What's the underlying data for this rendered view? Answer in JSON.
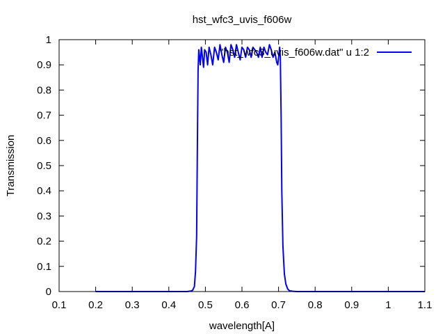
{
  "chart_data": {
    "type": "line",
    "title": "hst_wfc3_uvis_f606w",
    "xlabel": "wavelength[A]",
    "ylabel": "Transmission",
    "xlim": [
      0.1,
      1.1
    ],
    "ylim": [
      0,
      1
    ],
    "grid": false,
    "legend_position": "top-right",
    "x_ticks": [
      "0.1",
      "0.2",
      "0.3",
      "0.4",
      "0.5",
      "0.6",
      "0.7",
      "0.8",
      "0.9",
      "1",
      "1.1"
    ],
    "y_ticks": [
      "0",
      "0.1",
      "0.2",
      "0.3",
      "0.4",
      "0.5",
      "0.6",
      "0.7",
      "0.8",
      "0.9",
      "1"
    ],
    "series": [
      {
        "name": "\"hst_wfc3_uvis_f606w.dat\" u 1:2",
        "color": "#0000ff",
        "x": [
          0.2,
          0.45,
          0.46,
          0.465,
          0.47,
          0.473,
          0.476,
          0.478,
          0.48,
          0.482,
          0.484,
          0.486,
          0.489,
          0.492,
          0.495,
          0.498,
          0.502,
          0.506,
          0.51,
          0.515,
          0.52,
          0.525,
          0.53,
          0.535,
          0.54,
          0.545,
          0.55,
          0.555,
          0.56,
          0.565,
          0.57,
          0.575,
          0.58,
          0.585,
          0.59,
          0.595,
          0.6,
          0.605,
          0.61,
          0.615,
          0.62,
          0.625,
          0.63,
          0.635,
          0.64,
          0.645,
          0.65,
          0.655,
          0.66,
          0.665,
          0.67,
          0.675,
          0.68,
          0.685,
          0.69,
          0.695,
          0.698,
          0.701,
          0.703,
          0.705,
          0.707,
          0.709,
          0.712,
          0.716,
          0.72,
          0.725,
          0.73,
          0.74,
          0.75,
          1.1
        ],
        "y": [
          0,
          0,
          0.002,
          0.005,
          0.02,
          0.08,
          0.22,
          0.55,
          0.88,
          0.96,
          0.93,
          0.9,
          0.97,
          0.93,
          0.89,
          0.96,
          0.95,
          0.9,
          0.97,
          0.94,
          0.9,
          0.97,
          0.95,
          0.92,
          0.98,
          0.94,
          0.91,
          0.97,
          0.95,
          0.91,
          0.98,
          0.96,
          0.93,
          0.98,
          0.95,
          0.92,
          0.97,
          0.96,
          0.93,
          0.97,
          0.96,
          0.93,
          0.97,
          0.96,
          0.95,
          0.93,
          0.97,
          0.93,
          0.97,
          0.95,
          0.94,
          0.98,
          0.96,
          0.93,
          0.95,
          0.91,
          0.9,
          0.94,
          0.97,
          0.93,
          0.7,
          0.4,
          0.18,
          0.07,
          0.03,
          0.01,
          0.003,
          0.001,
          0,
          0
        ]
      }
    ]
  }
}
